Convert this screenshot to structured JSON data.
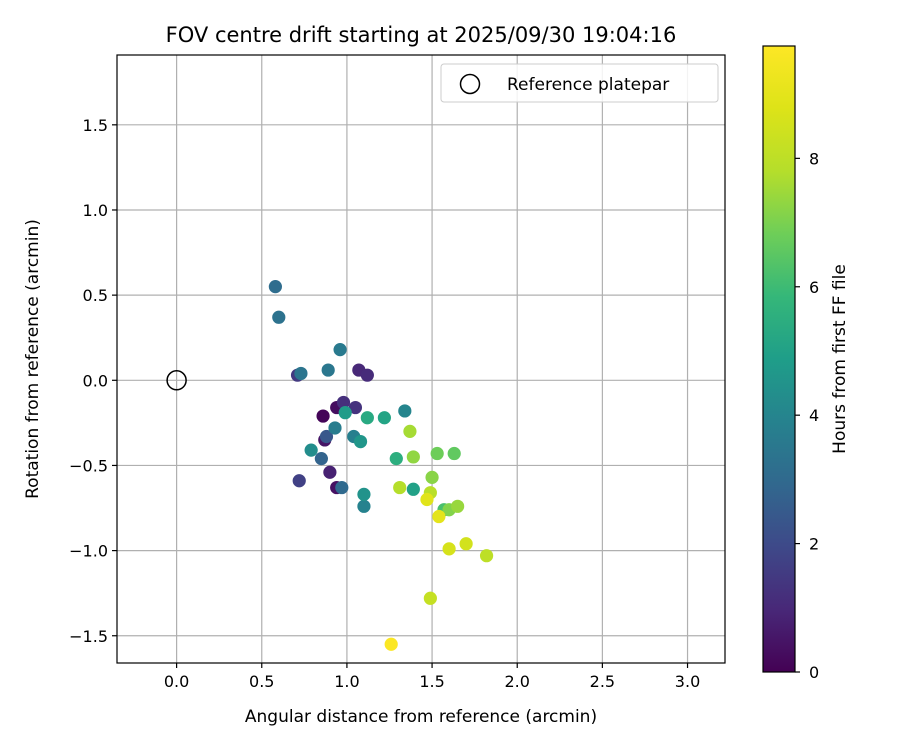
{
  "chart_data": {
    "type": "scatter",
    "title": "FOV centre drift starting at 2025/09/30 19:04:16",
    "xlabel": "Angular distance from reference (arcmin)",
    "ylabel": "Rotation from reference (arcmin)",
    "xlim": [
      -0.35,
      3.22
    ],
    "ylim": [
      -1.66,
      1.91
    ],
    "xticks": [
      0.0,
      0.5,
      1.0,
      1.5,
      2.0,
      2.5,
      3.0
    ],
    "xtick_labels": [
      "0.0",
      "0.5",
      "1.0",
      "1.5",
      "2.0",
      "2.5",
      "3.0"
    ],
    "yticks": [
      -1.5,
      -1.0,
      -0.5,
      0.0,
      0.5,
      1.0,
      1.5
    ],
    "ytick_labels": [
      "−1.5",
      "−1.0",
      "−0.5",
      "0.0",
      "0.5",
      "1.0",
      "1.5"
    ],
    "grid": true,
    "legend": {
      "position": "top-right",
      "entries": [
        "Reference platepar"
      ]
    },
    "reference_point": {
      "x": 0.0,
      "y": 0.0
    },
    "colorbar": {
      "label": "Hours from first FF file",
      "colormap": "viridis",
      "range": [
        0,
        9.75
      ],
      "ticks": [
        0,
        2,
        4,
        6,
        8
      ],
      "tick_labels": [
        "0",
        "2",
        "4",
        "6",
        "8"
      ]
    },
    "points": [
      {
        "x": 0.86,
        "y": -0.21,
        "t": 0.1
      },
      {
        "x": 0.94,
        "y": -0.16,
        "t": 0.3
      },
      {
        "x": 0.94,
        "y": -0.63,
        "t": 0.4
      },
      {
        "x": 0.87,
        "y": -0.35,
        "t": 0.5
      },
      {
        "x": 0.9,
        "y": -0.54,
        "t": 0.8
      },
      {
        "x": 1.07,
        "y": 0.06,
        "t": 1.0
      },
      {
        "x": 1.12,
        "y": 0.03,
        "t": 1.1
      },
      {
        "x": 0.98,
        "y": -0.13,
        "t": 1.2
      },
      {
        "x": 1.05,
        "y": -0.16,
        "t": 1.3
      },
      {
        "x": 0.71,
        "y": 0.03,
        "t": 1.5
      },
      {
        "x": 0.72,
        "y": -0.59,
        "t": 1.7
      },
      {
        "x": 0.88,
        "y": -0.33,
        "t": 2.4
      },
      {
        "x": 0.85,
        "y": -0.46,
        "t": 2.8
      },
      {
        "x": 0.97,
        "y": -0.63,
        "t": 3.0
      },
      {
        "x": 0.58,
        "y": 0.55,
        "t": 3.1
      },
      {
        "x": 0.6,
        "y": 0.37,
        "t": 3.3
      },
      {
        "x": 0.73,
        "y": 0.04,
        "t": 3.4
      },
      {
        "x": 0.89,
        "y": 0.06,
        "t": 3.5
      },
      {
        "x": 0.96,
        "y": 0.18,
        "t": 3.6
      },
      {
        "x": 0.93,
        "y": -0.28,
        "t": 3.7
      },
      {
        "x": 1.04,
        "y": -0.33,
        "t": 3.8
      },
      {
        "x": 1.1,
        "y": -0.74,
        "t": 3.9
      },
      {
        "x": 1.34,
        "y": -0.18,
        "t": 4.0
      },
      {
        "x": 0.79,
        "y": -0.41,
        "t": 4.3
      },
      {
        "x": 1.1,
        "y": -0.67,
        "t": 4.5
      },
      {
        "x": 1.08,
        "y": -0.36,
        "t": 4.6
      },
      {
        "x": 0.99,
        "y": -0.19,
        "t": 4.8
      },
      {
        "x": 1.39,
        "y": -0.64,
        "t": 5.0
      },
      {
        "x": 1.22,
        "y": -0.22,
        "t": 5.1
      },
      {
        "x": 1.12,
        "y": -0.22,
        "t": 5.3
      },
      {
        "x": 1.29,
        "y": -0.46,
        "t": 5.5
      },
      {
        "x": 1.57,
        "y": -0.76,
        "t": 6.2
      },
      {
        "x": 1.63,
        "y": -0.43,
        "t": 6.6
      },
      {
        "x": 1.53,
        "y": -0.43,
        "t": 6.8
      },
      {
        "x": 1.6,
        "y": -0.76,
        "t": 7.1
      },
      {
        "x": 1.5,
        "y": -0.57,
        "t": 7.2
      },
      {
        "x": 1.39,
        "y": -0.45,
        "t": 7.3
      },
      {
        "x": 1.65,
        "y": -0.74,
        "t": 7.4
      },
      {
        "x": 1.37,
        "y": -0.3,
        "t": 7.6
      },
      {
        "x": 1.31,
        "y": -0.63,
        "t": 7.8
      },
      {
        "x": 1.49,
        "y": -0.66,
        "t": 7.9
      },
      {
        "x": 1.82,
        "y": -1.03,
        "t": 8.0
      },
      {
        "x": 1.49,
        "y": -1.28,
        "t": 8.2
      },
      {
        "x": 1.7,
        "y": -0.96,
        "t": 8.5
      },
      {
        "x": 1.6,
        "y": -0.99,
        "t": 8.6
      },
      {
        "x": 1.47,
        "y": -0.7,
        "t": 8.9
      },
      {
        "x": 1.54,
        "y": -0.8,
        "t": 9.0
      },
      {
        "x": 1.26,
        "y": -1.55,
        "t": 9.7
      }
    ]
  }
}
